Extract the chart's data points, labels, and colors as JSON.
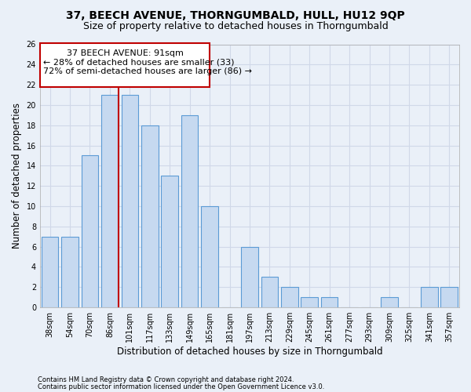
{
  "title": "37, BEECH AVENUE, THORNGUMBALD, HULL, HU12 9QP",
  "subtitle": "Size of property relative to detached houses in Thorngumbald",
  "xlabel": "Distribution of detached houses by size in Thorngumbald",
  "ylabel": "Number of detached properties",
  "categories": [
    "38sqm",
    "54sqm",
    "70sqm",
    "86sqm",
    "101sqm",
    "117sqm",
    "133sqm",
    "149sqm",
    "165sqm",
    "181sqm",
    "197sqm",
    "213sqm",
    "229sqm",
    "245sqm",
    "261sqm",
    "277sqm",
    "293sqm",
    "309sqm",
    "325sqm",
    "341sqm",
    "357sqm"
  ],
  "values": [
    7,
    7,
    15,
    21,
    21,
    18,
    13,
    19,
    10,
    0,
    6,
    3,
    2,
    1,
    1,
    0,
    0,
    1,
    0,
    2,
    2
  ],
  "bar_color": "#c6d9f0",
  "bar_edge_color": "#5b9bd5",
  "redline_bin_index": 3,
  "annotation_title": "37 BEECH AVENUE: 91sqm",
  "annotation_line1": "← 28% of detached houses are smaller (33)",
  "annotation_line2": "72% of semi-detached houses are larger (86) →",
  "annotation_box_color": "#ffffff",
  "annotation_box_edge_color": "#c00000",
  "ylim": [
    0,
    26
  ],
  "yticks": [
    0,
    2,
    4,
    6,
    8,
    10,
    12,
    14,
    16,
    18,
    20,
    22,
    24,
    26
  ],
  "grid_color": "#d0d8e8",
  "background_color": "#eaf0f8",
  "footer_line1": "Contains HM Land Registry data © Crown copyright and database right 2024.",
  "footer_line2": "Contains public sector information licensed under the Open Government Licence v3.0.",
  "title_fontsize": 10,
  "subtitle_fontsize": 9,
  "axis_label_fontsize": 8.5,
  "tick_fontsize": 7,
  "annotation_fontsize": 8,
  "footer_fontsize": 6
}
